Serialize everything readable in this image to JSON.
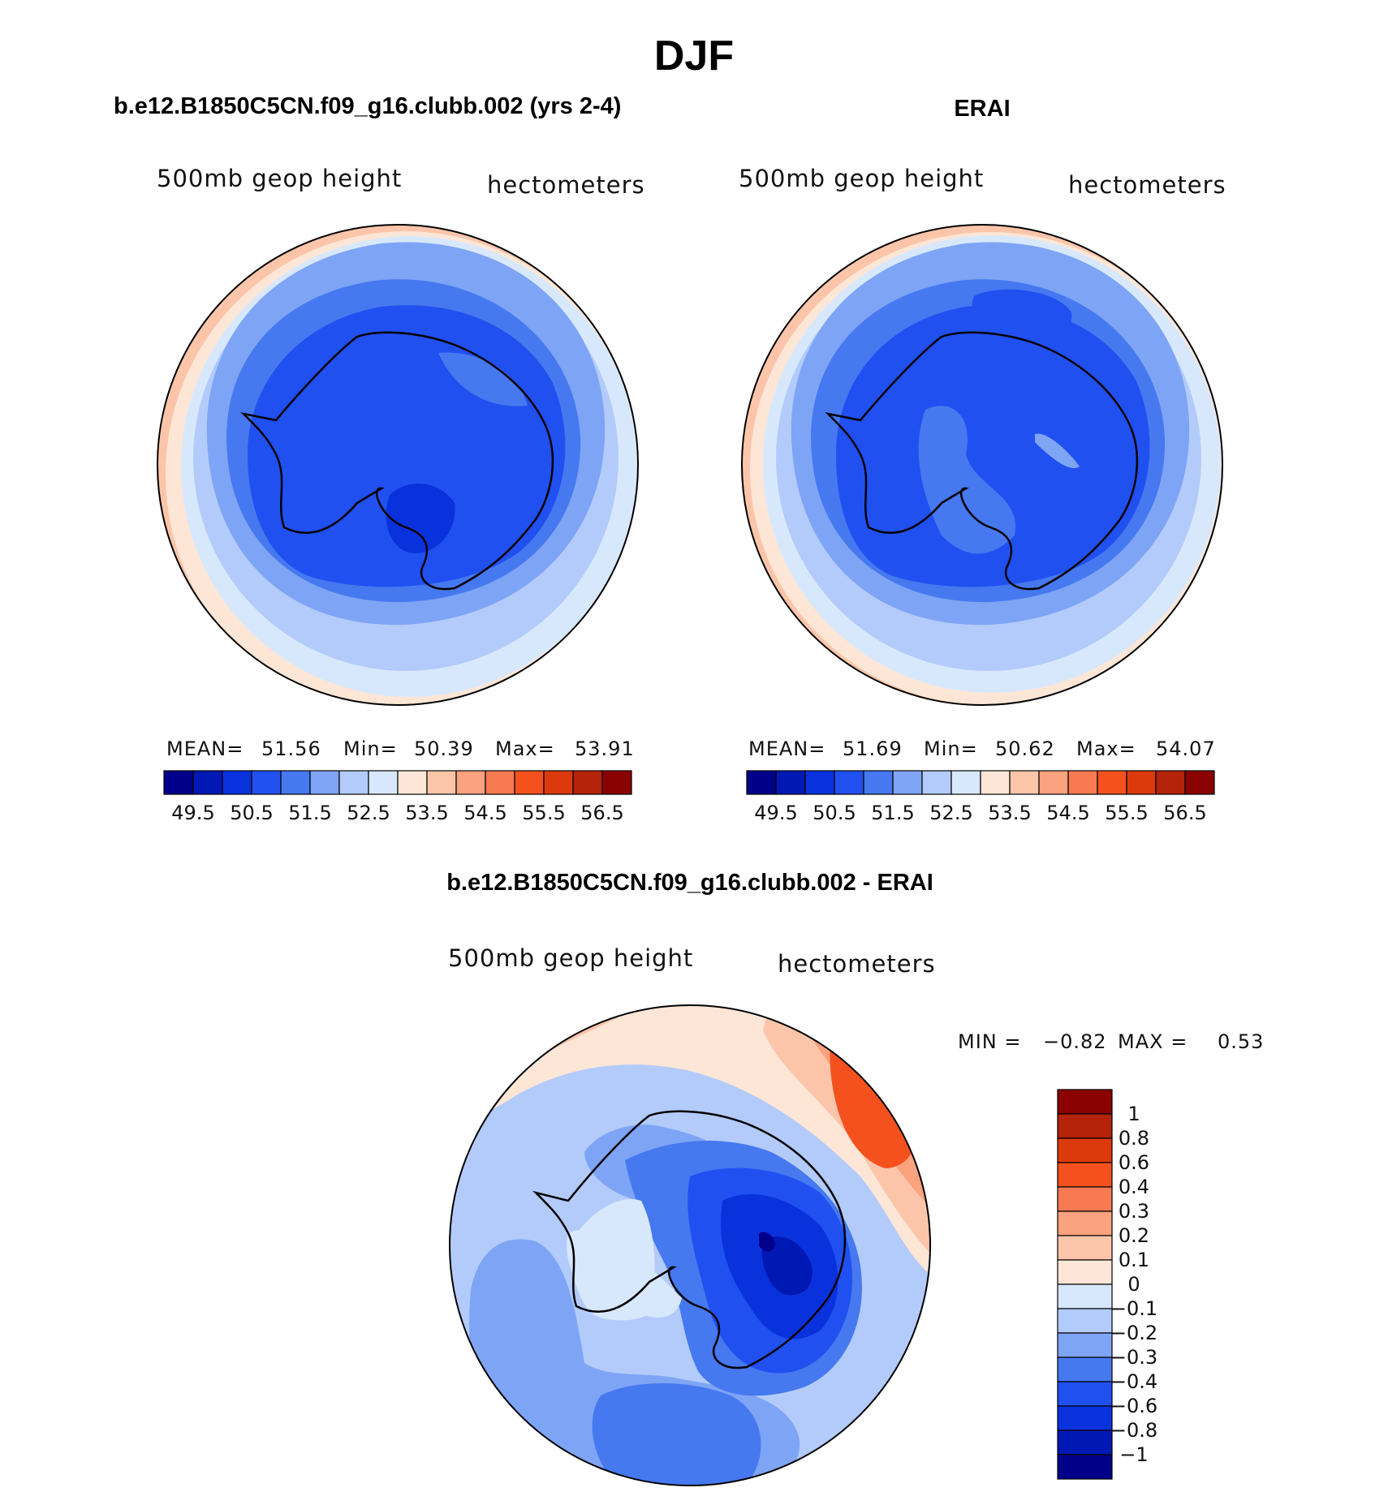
{
  "figure": {
    "title": "DJF"
  },
  "colors": {
    "levels_scale": [
      "#00008b",
      "#0019b4",
      "#0a32dc",
      "#2050f0",
      "#4678f0",
      "#7ea4f6",
      "#b3cbfb",
      "#d8e8fc",
      "#fde6d6",
      "#fcc5aa",
      "#fba27e",
      "#f77a52",
      "#f4511e",
      "#dc3a0d",
      "#b4230a",
      "#8b0000"
    ],
    "diff_scale": [
      "#00008b",
      "#0019b4",
      "#0a32dc",
      "#2050f0",
      "#4678f0",
      "#7ea4f6",
      "#b3cbfb",
      "#d8e8fc",
      "#fde6d6",
      "#fcc5aa",
      "#fba27e",
      "#f77a52",
      "#f4511e",
      "#dc3a0d",
      "#b4230a",
      "#8b0000"
    ]
  },
  "chart_data": [
    {
      "type": "heatmap",
      "id": "model",
      "title": "b.e12.B1850C5CN.f09_g16.clubb.002 (yrs 2-4)",
      "left_label": "500mb geop height",
      "right_label": "hectometers",
      "stats": {
        "mean_label": "MEAN=",
        "mean": "51.56",
        "min_label": "Min=",
        "min": "50.39",
        "max_label": "Max=",
        "max": "53.91"
      },
      "levels": [
        49.5,
        50,
        50.5,
        51,
        51.5,
        52,
        52.5,
        53,
        53.5,
        54,
        54.5,
        55,
        55.5,
        56,
        56.5
      ],
      "tick_labels": [
        "49.5",
        "50.5",
        "51.5",
        "52.5",
        "53.5",
        "54.5",
        "55.5",
        "56.5"
      ]
    },
    {
      "type": "heatmap",
      "id": "obs",
      "title": "ERAI",
      "left_label": "500mb geop height",
      "right_label": "hectometers",
      "stats": {
        "mean_label": "MEAN=",
        "mean": "51.69",
        "min_label": "Min=",
        "min": "50.62",
        "max_label": "Max=",
        "max": "54.07"
      },
      "levels": [
        49.5,
        50,
        50.5,
        51,
        51.5,
        52,
        52.5,
        53,
        53.5,
        54,
        54.5,
        55,
        55.5,
        56,
        56.5
      ],
      "tick_labels": [
        "49.5",
        "50.5",
        "51.5",
        "52.5",
        "53.5",
        "54.5",
        "55.5",
        "56.5"
      ]
    },
    {
      "type": "heatmap",
      "id": "diff",
      "title": "b.e12.B1850C5CN.f09_g16.clubb.002 - ERAI",
      "left_label": "500mb geop height",
      "right_label": "hectometers",
      "stats": {
        "min_label": "MIN =",
        "min": "−0.82",
        "max_label": "MAX =",
        "max": "0.53"
      },
      "levels": [
        -1,
        -0.8,
        -0.6,
        -0.4,
        -0.3,
        -0.2,
        -0.1,
        0,
        0.1,
        0.2,
        0.3,
        0.4,
        0.6,
        0.8,
        1
      ],
      "tick_labels": [
        "1",
        "0.8",
        "0.6",
        "0.4",
        "0.3",
        "0.2",
        "0.1",
        "0",
        "−0.1",
        "−0.2",
        "−0.3",
        "−0.4",
        "−0.6",
        "−0.8",
        "−1"
      ]
    }
  ]
}
